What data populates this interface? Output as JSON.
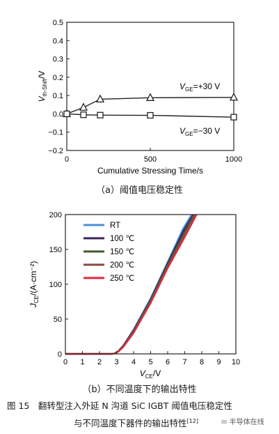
{
  "chart_data": [
    {
      "type": "line",
      "xlabel": "Cumulative Stressing Time/s",
      "ylabel_parts": {
        "v": "V",
        "sub": "th-Shift",
        "unit": "/V"
      },
      "xlim": [
        0,
        1000
      ],
      "ylim": [
        -0.2,
        0.5
      ],
      "xticks": [
        0,
        500,
        1000
      ],
      "yticks": [
        -0.2,
        -0.1,
        0.0,
        0.1,
        0.2,
        0.3,
        0.4,
        0.5
      ],
      "ytick_labels": [
        "−0.2",
        "−0.1",
        "0.0",
        "0.1",
        "0.2",
        "0.3",
        "0.4",
        "0.5"
      ],
      "series": [
        {
          "label_v": "V",
          "label_sub": "GE",
          "label_val": "=+30 V",
          "marker": "triangle",
          "x": [
            0,
            100,
            200,
            500,
            1000
          ],
          "y": [
            0.0,
            0.035,
            0.08,
            0.088,
            0.09
          ]
        },
        {
          "label_v": "V",
          "label_sub": "GE",
          "label_val": "=−30 V",
          "marker": "square",
          "x": [
            0,
            100,
            200,
            500,
            1000
          ],
          "y": [
            0.0,
            -0.005,
            -0.007,
            -0.008,
            -0.018
          ]
        }
      ],
      "caption": "（a）阈值电压稳定性"
    },
    {
      "type": "line",
      "xlabel_parts": {
        "v": "V",
        "sub": "CE",
        "unit": "/V"
      },
      "ylabel_parts": {
        "v": "J",
        "sub": "CE",
        "unit": "/(A·cm⁻²)"
      },
      "xlim": [
        0,
        10
      ],
      "ylim": [
        0,
        200
      ],
      "xticks": [
        0,
        1,
        2,
        3,
        4,
        5,
        6,
        7,
        8,
        9,
        10
      ],
      "yticks": [
        0,
        50,
        100,
        150,
        200
      ],
      "series": [
        {
          "name": "RT",
          "color": "#4a90d9",
          "x": [
            0,
            2.75,
            2.9,
            3.1,
            3.4,
            4.0,
            5.0,
            6.0,
            6.9,
            7.4
          ],
          "y": [
            0,
            0,
            1,
            4,
            12,
            35,
            80,
            132,
            180,
            200
          ]
        },
        {
          "name": "100 ℃",
          "color": "#3b1f5e",
          "x": [
            0,
            2.75,
            2.9,
            3.1,
            3.4,
            4.0,
            5.0,
            6.0,
            6.95,
            7.5
          ],
          "y": [
            0,
            0,
            1,
            4,
            12,
            34,
            78,
            130,
            178,
            200
          ]
        },
        {
          "name": "150 ℃",
          "color": "#3e5a2a",
          "x": [
            0,
            2.75,
            2.9,
            3.1,
            3.4,
            4.0,
            5.0,
            6.0,
            7.0,
            7.55
          ],
          "y": [
            0,
            0,
            1,
            4,
            11,
            33,
            77,
            128,
            176,
            200
          ]
        },
        {
          "name": "200 ℃",
          "color": "#8a4a3e",
          "x": [
            0,
            2.75,
            2.9,
            3.1,
            3.4,
            4.0,
            5.0,
            6.0,
            7.05,
            7.6
          ],
          "y": [
            0,
            0,
            1,
            4,
            11,
            32,
            75,
            126,
            174,
            200
          ]
        },
        {
          "name": "250 ℃",
          "color": "#e0283c",
          "x": [
            0,
            2.75,
            2.9,
            3.1,
            3.4,
            4.0,
            5.0,
            6.0,
            7.1,
            7.7
          ],
          "y": [
            0,
            0,
            1,
            3,
            10,
            30,
            73,
            123,
            172,
            200
          ]
        }
      ],
      "caption": "（b）不同温度下的输出特性"
    }
  ],
  "figure_caption": {
    "line1": "图 15　翻转型注入外延 N 沟道 SiC IGBT 阈值电压稳定性",
    "line2": "与不同温度下器件的输出特性",
    "ref": "[12]"
  },
  "watermark": "半导体在线"
}
